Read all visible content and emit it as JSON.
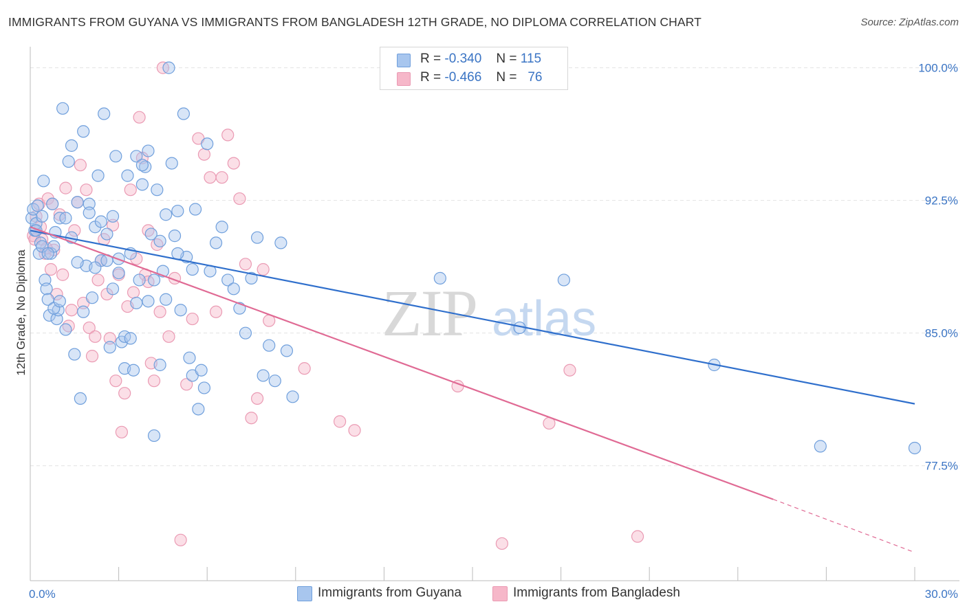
{
  "title": "IMMIGRANTS FROM GUYANA VS IMMIGRANTS FROM BANGLADESH 12TH GRADE, NO DIPLOMA CORRELATION CHART",
  "source": "Source: ZipAtlas.com",
  "watermark": {
    "zip": "ZIP",
    "atlas": "atlas"
  },
  "legend": [
    {
      "r_label": "R =",
      "r_value": "-0.340",
      "n_label": "N =",
      "n_value": "115"
    },
    {
      "r_label": "R =",
      "r_value": "-0.466",
      "n_label": "N =",
      "n_value": "76"
    }
  ],
  "colors": {
    "guyana_fill": "#a8c6ee",
    "guyana_stroke": "#6f9fdc",
    "guyana_line": "#2f6fcc",
    "bangladesh_fill": "#f6b7c9",
    "bangladesh_stroke": "#ea9ab3",
    "bangladesh_line": "#e06a94",
    "grid": "#e2e2e2",
    "tick_text": "#3a74c4"
  },
  "chart_data": {
    "type": "scatter",
    "title": "IMMIGRANTS FROM GUYANA VS IMMIGRANTS FROM BANGLADESH 12TH GRADE, NO DIPLOMA CORRELATION CHART",
    "xlabel": "",
    "ylabel": "12th Grade, No Diploma",
    "xlim": [
      0.0,
      30.0
    ],
    "ylim": [
      71.0,
      101.5
    ],
    "x_tick_labels": [
      "0.0%",
      "30.0%"
    ],
    "y_ticks": [
      77.5,
      85.0,
      92.5,
      100.0
    ],
    "y_tick_labels": [
      "77.5%",
      "85.0%",
      "92.5%",
      "100.0%"
    ],
    "grid": true,
    "legend_position": "top-center",
    "series": [
      {
        "name": "Immigrants from Guyana",
        "trend": {
          "x": [
            0.0,
            30.0
          ],
          "y": [
            90.8,
            81.0
          ]
        },
        "x": [
          0.05,
          0.1,
          0.15,
          0.2,
          0.25,
          0.3,
          0.35,
          0.4,
          0.45,
          0.5,
          0.55,
          0.6,
          0.65,
          0.7,
          0.75,
          0.8,
          0.85,
          0.9,
          0.95,
          1.0,
          1.1,
          1.2,
          1.3,
          1.4,
          1.5,
          1.6,
          1.7,
          1.8,
          1.9,
          2.0,
          2.1,
          2.2,
          2.3,
          2.4,
          2.5,
          2.6,
          2.7,
          2.8,
          2.9,
          3.0,
          3.1,
          3.2,
          3.3,
          3.4,
          3.5,
          3.6,
          3.7,
          3.8,
          3.9,
          4.0,
          4.1,
          4.2,
          4.3,
          4.4,
          4.5,
          4.6,
          4.7,
          4.8,
          4.9,
          5.0,
          5.1,
          5.2,
          5.3,
          5.4,
          5.5,
          5.6,
          5.7,
          5.8,
          5.9,
          6.0,
          6.1,
          6.3,
          6.5,
          6.7,
          6.9,
          7.1,
          7.3,
          7.5,
          7.7,
          7.9,
          8.1,
          8.3,
          8.5,
          8.7,
          8.9,
          0.2,
          0.4,
          0.6,
          0.8,
          1.0,
          1.2,
          1.4,
          1.6,
          1.8,
          2.0,
          2.2,
          2.4,
          2.6,
          2.8,
          3.0,
          3.2,
          3.4,
          3.6,
          3.8,
          4.0,
          4.2,
          4.4,
          4.6,
          5.0,
          5.5,
          13.9,
          16.6,
          18.1,
          23.2,
          26.8,
          30.0
        ],
        "y": [
          91.5,
          92.0,
          90.8,
          91.2,
          92.2,
          89.5,
          90.1,
          91.6,
          93.6,
          88.0,
          87.5,
          86.9,
          86.0,
          89.5,
          92.3,
          89.9,
          90.7,
          85.8,
          86.3,
          91.5,
          97.7,
          85.2,
          94.7,
          95.6,
          83.8,
          92.4,
          81.3,
          96.4,
          88.8,
          92.3,
          87.0,
          91.0,
          93.9,
          89.1,
          97.4,
          90.6,
          84.2,
          91.6,
          95.0,
          88.4,
          84.5,
          83.0,
          93.9,
          89.5,
          82.9,
          86.7,
          88.0,
          93.4,
          94.4,
          95.3,
          90.6,
          79.2,
          93.1,
          90.2,
          88.5,
          86.9,
          100.0,
          94.6,
          90.5,
          91.9,
          86.3,
          97.4,
          89.3,
          83.6,
          82.6,
          92.0,
          80.7,
          82.9,
          81.9,
          95.7,
          88.5,
          90.1,
          91.0,
          88.0,
          87.5,
          86.4,
          85.0,
          88.1,
          90.4,
          82.6,
          84.3,
          82.3,
          90.1,
          84.0,
          81.4,
          90.8,
          89.9,
          89.5,
          86.4,
          86.8,
          91.5,
          90.4,
          89.0,
          86.2,
          91.8,
          88.7,
          91.3,
          89.1,
          87.5,
          89.2,
          84.8,
          84.7,
          95.0,
          94.5,
          86.8,
          88.0,
          83.2,
          91.7,
          89.5,
          88.6,
          88.1,
          85.3,
          88.0,
          83.2,
          78.6,
          78.5
        ]
      },
      {
        "name": "Immigrants from Bangladesh",
        "trend": {
          "x": [
            0.0,
            25.2
          ],
          "y": [
            91.0,
            75.6
          ]
        },
        "trend_extension": {
          "x": [
            25.2,
            30.0
          ],
          "y": [
            75.6,
            72.6
          ]
        },
        "x": [
          0.1,
          0.2,
          0.3,
          0.4,
          0.5,
          0.6,
          0.7,
          0.8,
          0.9,
          1.0,
          1.1,
          1.2,
          1.3,
          1.4,
          1.5,
          1.6,
          1.7,
          1.8,
          1.9,
          2.0,
          2.1,
          2.2,
          2.3,
          2.4,
          2.5,
          2.6,
          2.7,
          2.8,
          2.9,
          3.0,
          3.1,
          3.2,
          3.3,
          3.4,
          3.5,
          3.6,
          3.7,
          3.8,
          3.9,
          4.0,
          4.1,
          4.2,
          4.3,
          4.4,
          4.5,
          4.7,
          4.9,
          5.1,
          5.3,
          5.5,
          5.7,
          5.9,
          6.1,
          6.3,
          6.5,
          6.7,
          6.9,
          7.1,
          7.3,
          7.5,
          7.7,
          7.9,
          8.1,
          9.3,
          10.5,
          11.0,
          14.5,
          16.0,
          17.6,
          18.3,
          20.6,
          0.15,
          0.35,
          0.55,
          0.75,
          4.0
        ],
        "y": [
          90.5,
          91.6,
          92.3,
          90.3,
          89.5,
          92.6,
          88.6,
          89.7,
          87.2,
          91.7,
          88.3,
          93.2,
          85.4,
          86.3,
          90.8,
          92.4,
          94.5,
          86.7,
          93.1,
          85.3,
          83.7,
          84.8,
          88.0,
          89.1,
          90.3,
          87.2,
          84.7,
          91.1,
          82.3,
          88.3,
          79.4,
          81.6,
          86.5,
          93.1,
          87.3,
          89.2,
          97.2,
          94.9,
          88.3,
          87.9,
          83.3,
          82.3,
          90.0,
          86.2,
          100.0,
          84.8,
          88.1,
          73.3,
          82.1,
          85.8,
          96.0,
          95.1,
          93.8,
          86.2,
          93.8,
          96.2,
          94.6,
          92.6,
          88.9,
          80.2,
          81.3,
          88.6,
          85.7,
          83.0,
          80.0,
          79.5,
          82.0,
          73.1,
          79.9,
          82.9,
          73.5,
          90.3,
          91.0,
          89.8,
          92.3,
          90.8
        ]
      }
    ]
  }
}
